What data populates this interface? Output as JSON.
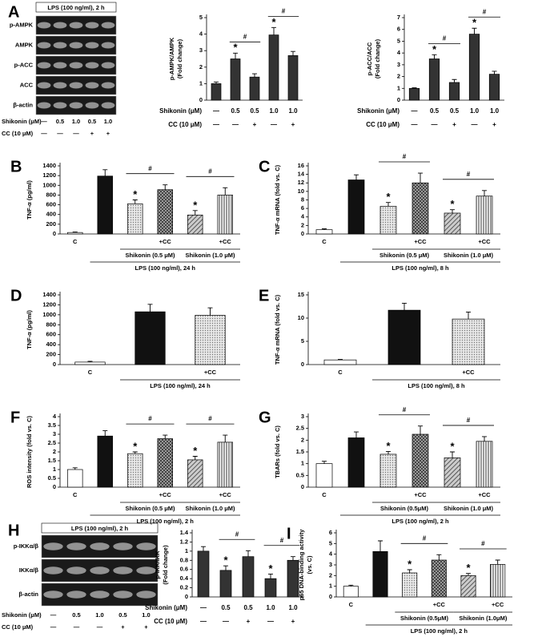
{
  "blots": [
    {
      "panel": "A",
      "header": "LPS (100 ng/ml), 2 h",
      "rows": [
        "p-AMPK",
        "AMPK",
        "p-ACC",
        "ACC",
        "β-actin"
      ],
      "treatment_rows": [
        {
          "label": "Shikonin (μM)",
          "values": [
            "—",
            "0.5",
            "1.0",
            "0.5",
            "1.0"
          ]
        },
        {
          "label": "CC (10 μM)",
          "values": [
            "—",
            "—",
            "—",
            "+",
            "+"
          ]
        }
      ]
    },
    {
      "panel": "H",
      "header": "LPS (100 ng/ml), 2 h",
      "rows": [
        "p-IKKα/β",
        "IKKα/β",
        "β-actin"
      ],
      "treatment_rows": [
        {
          "label": "Shikonin (μM)",
          "values": [
            "—",
            "0.5",
            "1.0",
            "0.5",
            "1.0"
          ]
        },
        {
          "label": "CC (10 μM)",
          "values": [
            "—",
            "—",
            "—",
            "+",
            "+"
          ]
        }
      ]
    }
  ],
  "chart_data": [
    {
      "type": "bar",
      "ylabel": [
        "p-AMPK/AMPK",
        "(Fold change)"
      ],
      "ylim": [
        0,
        5
      ],
      "yticks": [
        0,
        1,
        2,
        3,
        4,
        5
      ],
      "values": [
        1.0,
        2.5,
        1.4,
        3.95,
        2.7
      ],
      "errors": [
        0.1,
        0.35,
        0.2,
        0.45,
        0.25
      ],
      "bar_styles": [
        "dark",
        "dark",
        "dark",
        "dark",
        "dark"
      ],
      "markers": [
        null,
        "*",
        null,
        "*",
        null
      ],
      "brackets": [
        {
          "label": "#",
          "from": 1,
          "to": 2
        },
        {
          "label": "#",
          "from": 3,
          "to": 4
        }
      ],
      "treatment_rows": [
        {
          "label": "Shikonin (μM)",
          "values": [
            "—",
            "0.5",
            "0.5",
            "1.0",
            "1.0"
          ]
        },
        {
          "label": "CC (10 μM)",
          "values": [
            "—",
            "—",
            "+",
            "—",
            "+"
          ]
        }
      ]
    },
    {
      "type": "bar",
      "ylabel": [
        "p-ACC/ACC",
        "(Fold change)"
      ],
      "ylim": [
        0,
        7
      ],
      "yticks": [
        0,
        1,
        2,
        3,
        4,
        5,
        6,
        7
      ],
      "values": [
        1.0,
        3.5,
        1.5,
        5.6,
        2.2
      ],
      "errors": [
        0.05,
        0.35,
        0.25,
        0.5,
        0.25
      ],
      "bar_styles": [
        "dark",
        "dark",
        "dark",
        "dark",
        "dark"
      ],
      "markers": [
        null,
        "*",
        null,
        "*",
        null
      ],
      "brackets": [
        {
          "label": "#",
          "from": 1,
          "to": 2
        },
        {
          "label": "#",
          "from": 3,
          "to": 4
        }
      ],
      "treatment_rows": [
        {
          "label": "Shikonin (μM)",
          "values": [
            "—",
            "0.5",
            "0.5",
            "1.0",
            "1.0"
          ]
        },
        {
          "label": "CC (10 μM)",
          "values": [
            "—",
            "—",
            "+",
            "—",
            "+"
          ]
        }
      ]
    },
    {
      "type": "bar",
      "panel": "B",
      "ylabel": "TNF-α (pg/ml)",
      "ylim": [
        0,
        1400
      ],
      "yticks": [
        0,
        200,
        400,
        600,
        800,
        1000,
        1200,
        1400
      ],
      "categories": [
        "C",
        null,
        null,
        "+CC",
        null,
        "+CC"
      ],
      "values": [
        30,
        1190,
        620,
        910,
        390,
        800
      ],
      "errors": [
        10,
        130,
        80,
        100,
        90,
        150
      ],
      "bar_styles": [
        "white",
        "black",
        "dots",
        "checker",
        "hatch",
        "stripes"
      ],
      "markers": [
        null,
        null,
        "*",
        null,
        "*",
        null
      ],
      "brackets": [
        {
          "label": "#",
          "from": 2,
          "to": 3
        },
        {
          "label": "#",
          "from": 4,
          "to": 5
        }
      ],
      "inner_groups": [
        {
          "label": "Shikonin (0.5 μM)",
          "from": 2,
          "to": 3
        },
        {
          "label": "Shikonin (1.0 μM)",
          "from": 4,
          "to": 5
        }
      ],
      "outer_group": {
        "label": "LPS (100 ng/ml), 24 h",
        "from": 1,
        "to": 5
      }
    },
    {
      "type": "bar",
      "panel": "C",
      "ylabel": "TNF-α mRNA (fold vs. C)",
      "ylim": [
        0,
        16
      ],
      "yticks": [
        0,
        2,
        4,
        6,
        8,
        10,
        12,
        14,
        16
      ],
      "categories": [
        "C",
        null,
        null,
        "+CC",
        null,
        "+CC"
      ],
      "values": [
        1.0,
        12.7,
        6.5,
        12.0,
        4.9,
        8.9
      ],
      "errors": [
        0.2,
        1.2,
        0.9,
        2.3,
        0.8,
        1.3
      ],
      "bar_styles": [
        "white",
        "black",
        "dots",
        "checker",
        "hatch",
        "stripes"
      ],
      "markers": [
        null,
        null,
        "*",
        null,
        "*",
        null
      ],
      "brackets": [
        {
          "label": "#",
          "from": 2,
          "to": 3
        },
        {
          "label": "#",
          "from": 4,
          "to": 5
        }
      ],
      "inner_groups": [
        {
          "label": "Shikonin (0.5 μM)",
          "from": 2,
          "to": 3
        },
        {
          "label": "Shikonin (1.0 μM)",
          "from": 4,
          "to": 5
        }
      ],
      "outer_group": {
        "label": "LPS (100 ng/ml), 8 h",
        "from": 1,
        "to": 5
      }
    },
    {
      "type": "bar",
      "panel": "D",
      "ylabel": "TNF-α (pg/ml)",
      "ylim": [
        0,
        1400
      ],
      "yticks": [
        0,
        200,
        400,
        600,
        800,
        1000,
        1200,
        1400
      ],
      "categories": [
        "C",
        null,
        "+CC"
      ],
      "values": [
        50,
        1060,
        990
      ],
      "errors": [
        15,
        150,
        150
      ],
      "bar_styles": [
        "white",
        "black",
        "dots"
      ],
      "outer_group": {
        "label": "LPS (100 ng/ml), 24 h",
        "from": 1,
        "to": 2
      }
    },
    {
      "type": "bar",
      "panel": "E",
      "ylabel": "TNF-α mRNA (fold vs. C)",
      "ylim": [
        0,
        15
      ],
      "yticks": [
        0,
        5,
        10,
        15
      ],
      "categories": [
        "C",
        null,
        "+CC"
      ],
      "values": [
        1.0,
        11.7,
        9.8
      ],
      "errors": [
        0.1,
        1.5,
        1.5
      ],
      "bar_styles": [
        "white",
        "black",
        "dots"
      ],
      "outer_group": {
        "label": "LPS (100 ng/ml), 8 h",
        "from": 1,
        "to": 2
      }
    },
    {
      "type": "bar",
      "panel": "F",
      "ylabel": "ROS intensity (fold vs. C)",
      "ylim": [
        0,
        4
      ],
      "yticks": [
        0,
        0.5,
        1,
        1.5,
        2,
        2.5,
        3,
        3.5,
        4
      ],
      "categories": [
        "C",
        null,
        null,
        "+CC",
        null,
        "+CC"
      ],
      "values": [
        1.0,
        2.9,
        1.9,
        2.75,
        1.55,
        2.55
      ],
      "errors": [
        0.1,
        0.3,
        0.1,
        0.2,
        0.2,
        0.4
      ],
      "bar_styles": [
        "white",
        "black",
        "dots",
        "checker",
        "hatch",
        "stripes"
      ],
      "markers": [
        null,
        null,
        "*",
        null,
        "*",
        null
      ],
      "brackets": [
        {
          "label": "#",
          "from": 2,
          "to": 3
        },
        {
          "label": "#",
          "from": 4,
          "to": 5
        }
      ],
      "inner_groups": [
        {
          "label": "Shikonin (0.5 μM)",
          "from": 2,
          "to": 3
        },
        {
          "label": "Shikonin (1.0 μM)",
          "from": 4,
          "to": 5
        }
      ],
      "outer_group": {
        "label": "LPS (100 ng/ml), 2 h",
        "from": 1,
        "to": 5
      }
    },
    {
      "type": "bar",
      "panel": "G",
      "ylabel": "TBARs (fold vs. C)",
      "ylim": [
        0,
        3
      ],
      "yticks": [
        0,
        0.5,
        1,
        1.5,
        2,
        2.5,
        3
      ],
      "categories": [
        "C",
        null,
        null,
        "+CC",
        null,
        "+CC"
      ],
      "values": [
        1.0,
        2.1,
        1.4,
        2.25,
        1.25,
        1.95
      ],
      "errors": [
        0.1,
        0.25,
        0.12,
        0.35,
        0.25,
        0.2
      ],
      "bar_styles": [
        "white",
        "black",
        "dots",
        "checker",
        "hatch",
        "stripes"
      ],
      "markers": [
        null,
        null,
        "*",
        null,
        "*",
        null
      ],
      "brackets": [
        {
          "label": "#",
          "from": 2,
          "to": 3
        },
        {
          "label": "#",
          "from": 4,
          "to": 5
        }
      ],
      "inner_groups": [
        {
          "label": "Shikonin (0.5μM)",
          "from": 2,
          "to": 3
        },
        {
          "label": "Shikonin (1.0 μM)",
          "from": 4,
          "to": 5
        }
      ],
      "outer_group": {
        "label": "LPS (100 ng/ml), 2 h",
        "from": 1,
        "to": 5
      }
    },
    {
      "type": "bar",
      "ylabel": [
        "p-IKK/IKK",
        "(Fold change)"
      ],
      "ylim": [
        0,
        1.4
      ],
      "yticks": [
        0,
        0.2,
        0.4,
        0.6,
        0.8,
        1,
        1.2,
        1.4
      ],
      "values": [
        1.0,
        0.58,
        0.88,
        0.4,
        0.8
      ],
      "errors": [
        0.1,
        0.1,
        0.13,
        0.1,
        0.08
      ],
      "bar_styles": [
        "dark",
        "dark",
        "dark",
        "dark",
        "dark"
      ],
      "markers": [
        null,
        "*",
        null,
        "*",
        null
      ],
      "brackets": [
        {
          "label": "#",
          "from": 1,
          "to": 2
        },
        {
          "label": "#",
          "from": 3,
          "to": 4
        }
      ],
      "treatment_rows": [
        {
          "label": "Shikonin (μM)",
          "values": [
            "—",
            "0.5",
            "0.5",
            "1.0",
            "1.0"
          ]
        },
        {
          "label": "CC (10 μM)",
          "values": [
            "—",
            "—",
            "+",
            "—",
            "+"
          ]
        }
      ]
    },
    {
      "type": "bar",
      "panel": "I",
      "ylabel": [
        "p65 DNA-binding activity",
        "(vs. C)"
      ],
      "ylim": [
        0,
        6
      ],
      "yticks": [
        0,
        1,
        2,
        3,
        4,
        5,
        6
      ],
      "categories": [
        "C",
        null,
        null,
        "+CC",
        null,
        "+CC"
      ],
      "values": [
        1.0,
        4.25,
        2.25,
        3.45,
        2.0,
        3.05
      ],
      "errors": [
        0.1,
        1.0,
        0.3,
        0.5,
        0.2,
        0.4
      ],
      "bar_styles": [
        "white",
        "black",
        "dots",
        "checker",
        "hatch",
        "stripes"
      ],
      "markers": [
        null,
        null,
        "*",
        null,
        "*",
        null
      ],
      "brackets": [
        {
          "label": "#",
          "from": 2,
          "to": 3
        },
        {
          "label": "#",
          "from": 4,
          "to": 5
        }
      ],
      "inner_groups": [
        {
          "label": "Shikonin (0.5μM)",
          "from": 2,
          "to": 3
        },
        {
          "label": "Shikonin (1.0μM)",
          "from": 4,
          "to": 5
        }
      ],
      "outer_group": {
        "label": "LPS (100 ng/ml), 2 h",
        "from": 1,
        "to": 5
      }
    }
  ]
}
